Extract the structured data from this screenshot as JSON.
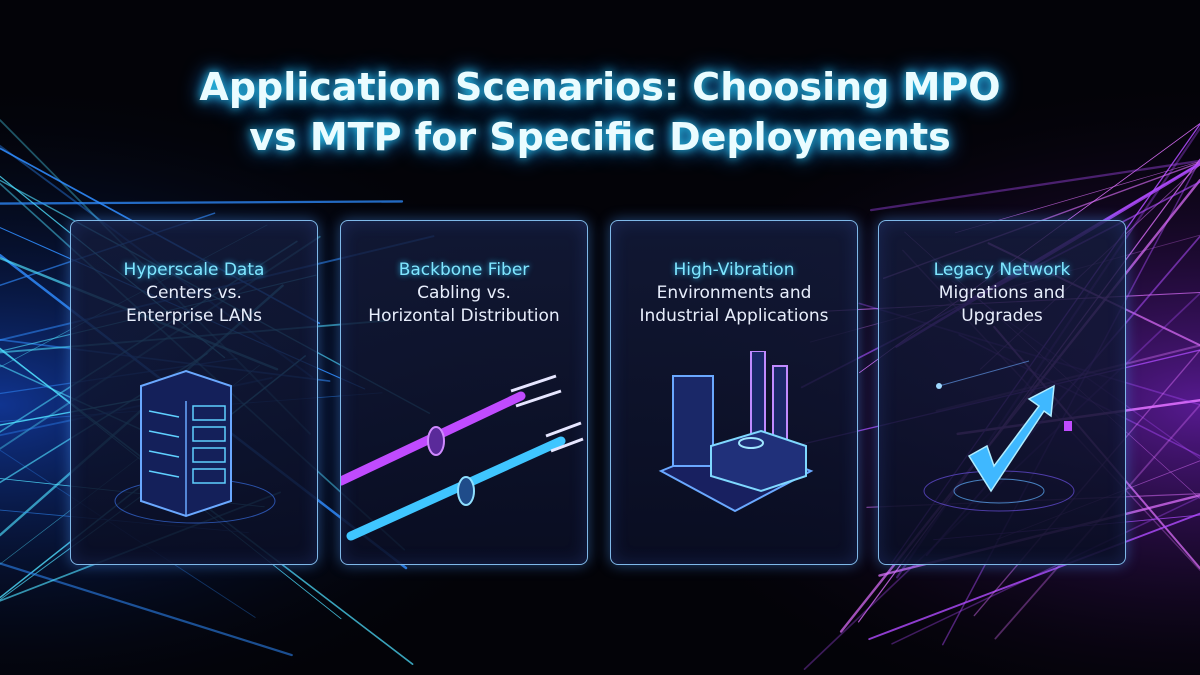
{
  "header": {
    "title": [
      "Application Scenarios: Choosing MPO",
      "vs MTP for Specific Deployments"
    ]
  },
  "cards": [
    {
      "highlight": "Hyperscale Data",
      "lines": [
        "Centers vs.",
        "Enterprise LANs"
      ]
    },
    {
      "highlight": "Backbone Fiber",
      "lines": [
        "Cabling vs.",
        "Horizontal Distribution"
      ]
    },
    {
      "highlight": "High-Vibration",
      "lines": [
        "Environments and",
        "Industrial Applications"
      ]
    },
    {
      "highlight": "Legacy Network",
      "lines": [
        "Migrations and",
        "Upgrades"
      ]
    }
  ]
}
